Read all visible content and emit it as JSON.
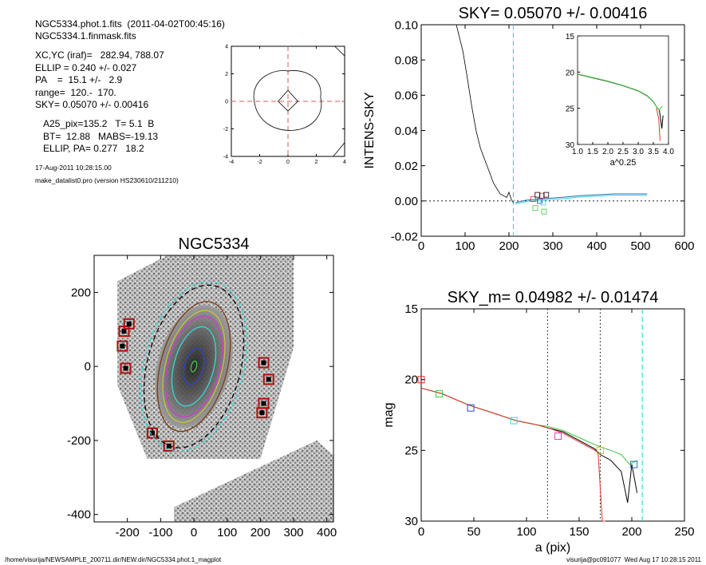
{
  "header": {
    "line1": "NGC5334.phot.1.fits  (2011-04-02T00:45:16)",
    "line2": "NGC5334.1.finmask.fits",
    "line3": "XC,YC (iraf)=   282.94, 788.07",
    "line4": "ELLIP = 0.240 +/- 0.027",
    "line5": "PA    =  15.1 +/-   2.9",
    "line6": "range=  120.-  170.",
    "line7": "SKY= 0.05070 +/- 0.00416",
    "line8": "A25_pix=135.2   T= 5.1  B",
    "line9": "BT=  12.88   MABS=-19.13",
    "line10": "ELLIP, PA= 0.277   18.2",
    "date": "17-Aug-2011 10:28:15.00",
    "program": "make_datalist0.pro (version HS230610/211210)"
  },
  "footer": {
    "path": "/home/visurija/NEWSAMPLE_200711.dir/NEW.dir/NGC5334.phot.1_magplot",
    "user": "visurija@pc091077  Wed Aug 17 10:28:15 2011"
  },
  "colors": {
    "red": "#e8332e",
    "green": "#3ec93e",
    "blue": "#2f46c6",
    "cyan": "#3cd6d6",
    "magenta": "#d03ad0",
    "yellow": "#c8c43a",
    "brown": "#7a3a12",
    "navy": "#1f6fb8"
  },
  "chart_data": [
    {
      "type": "line",
      "name": "contour",
      "xlim": [
        -4,
        4
      ],
      "ylim": [
        -4,
        4
      ],
      "xticks": [
        "-4",
        "-2",
        "0",
        "2",
        "4"
      ],
      "yticks": [
        "-4",
        "-2",
        "0",
        "2",
        "4"
      ]
    },
    {
      "type": "line",
      "title": "SKY= 0.05070 +/- 0.00416",
      "ylabel": "INTENS-SKY",
      "xlim": [
        0,
        600
      ],
      "ylim": [
        -0.02,
        0.1
      ],
      "xticks": [
        "0",
        "100",
        "200",
        "300",
        "400",
        "500",
        "600"
      ],
      "yticks": [
        "-0.02",
        "0.00",
        "0.02",
        "0.04",
        "0.06",
        "0.08",
        "0.10"
      ],
      "vline_cyan": 210,
      "series": [
        {
          "x": [
            80,
            95,
            105,
            115,
            125,
            135,
            150,
            165,
            180,
            195,
            200,
            205,
            210
          ],
          "y": [
            0.1,
            0.085,
            0.07,
            0.054,
            0.04,
            0.03,
            0.02,
            0.01,
            0.004,
            0.002,
            0.005,
            0.001,
            -0.001
          ]
        },
        {
          "x": [
            215,
            240,
            265,
            290,
            320,
            360,
            400,
            440,
            470,
            500,
            515
          ],
          "y": [
            -0.001,
            0.0005,
            0.001,
            0.0015,
            0.002,
            0.003,
            0.0035,
            0.004,
            0.004,
            0.004,
            0.004
          ]
        }
      ],
      "markers": [
        {
          "x": 255,
          "y": 0.001,
          "c": "red"
        },
        {
          "x": 275,
          "y": 0.003,
          "c": "red"
        },
        {
          "x": 260,
          "y": -0.004,
          "c": "green"
        },
        {
          "x": 280,
          "y": -0.006,
          "c": "green"
        },
        {
          "x": 265,
          "y": 0.0035,
          "c": "black"
        },
        {
          "x": 285,
          "y": 0.0035,
          "c": "black"
        },
        {
          "x": 270,
          "y": 0.0,
          "c": "blue"
        },
        {
          "x": 278,
          "y": -0.001,
          "c": "cyan"
        }
      ]
    },
    {
      "type": "line",
      "name": "inset",
      "xlabel": "a^0.25",
      "xlim": [
        1.0,
        4.0
      ],
      "ylim": [
        15,
        30
      ],
      "xticks": [
        "1.0",
        "1.5",
        "2.0",
        "2.5",
        "3.0",
        "3.5",
        "4.0"
      ],
      "yticks": [
        "15",
        "20",
        "25",
        "30"
      ]
    },
    {
      "type": "line",
      "title": "NGC5334",
      "xlim": [
        -300,
        420
      ],
      "ylim": [
        -420,
        300
      ],
      "xticks": [
        "-200",
        "-100",
        "0",
        "100",
        "200",
        "300",
        "400"
      ],
      "yticks": [
        "-400",
        "-200",
        "0",
        "200"
      ]
    },
    {
      "type": "line",
      "title": "SKY_m=  0.04982 +/- 0.01474",
      "xlabel": "a (pix)",
      "ylabel": "mag",
      "xlim": [
        0,
        250
      ],
      "ylim": [
        30,
        15
      ],
      "xticks": [
        "0",
        "50",
        "100",
        "150",
        "200",
        "250"
      ],
      "yticks": [
        "15",
        "20",
        "25",
        "30"
      ],
      "vlines_dotted": [
        120,
        170
      ],
      "vline_cyan": 210,
      "series": [
        {
          "name": "black",
          "x": [
            0,
            20,
            45,
            70,
            90,
            110,
            120,
            135,
            150,
            165,
            170,
            180,
            190,
            196,
            200,
            205
          ],
          "y": [
            20.6,
            21.0,
            21.8,
            22.4,
            22.9,
            23.2,
            23.4,
            23.7,
            24.3,
            24.9,
            25.3,
            25.7,
            26.5,
            28.7,
            26.0,
            28.0
          ]
        },
        {
          "name": "green",
          "x": [
            0,
            20,
            45,
            70,
            90,
            110,
            120,
            135,
            150,
            165,
            172,
            180,
            190,
            198,
            205
          ],
          "y": [
            20.6,
            21.0,
            21.8,
            22.4,
            22.9,
            23.2,
            23.3,
            23.6,
            24.1,
            24.6,
            24.8,
            25.0,
            25.3,
            26.0,
            25.7
          ]
        },
        {
          "name": "red",
          "x": [
            0,
            20,
            45,
            70,
            90,
            110,
            120,
            135,
            150,
            165,
            168,
            172,
            175
          ],
          "y": [
            20.6,
            21.0,
            21.8,
            22.4,
            22.9,
            23.2,
            23.4,
            23.8,
            24.4,
            25.0,
            25.2,
            30.0,
            30.0
          ]
        }
      ],
      "markers": [
        {
          "x": 0,
          "y": 20.0,
          "c": "red"
        },
        {
          "x": 17,
          "y": 21.0,
          "c": "green"
        },
        {
          "x": 47,
          "y": 22.0,
          "c": "blue"
        },
        {
          "x": 88,
          "y": 22.9,
          "c": "cyan"
        },
        {
          "x": 130,
          "y": 24.0,
          "c": "magenta"
        },
        {
          "x": 170,
          "y": 25.0,
          "c": "yellow"
        },
        {
          "x": 202,
          "y": 26.0,
          "c": "navy"
        }
      ]
    }
  ]
}
